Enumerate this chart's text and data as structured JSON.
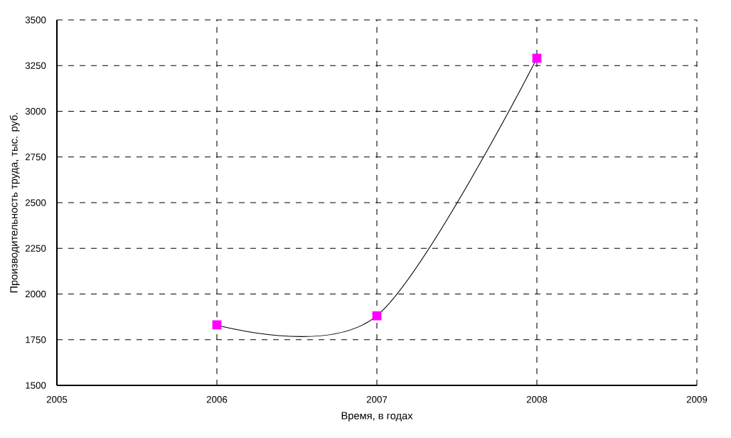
{
  "chart_data": {
    "type": "line",
    "xlabel": "Время, в годах",
    "ylabel": "Производительность труда, тыс. руб.",
    "x": [
      2006,
      2007,
      2008
    ],
    "series": [
      {
        "color": "#000000",
        "colors": [
          "#ff00ff",
          "#ff00ff",
          "#ff00ff"
        ],
        "values": [
          1831,
          1881,
          3290
        ]
      }
    ],
    "xlim": [
      2005,
      2009
    ],
    "xticks": [
      2005,
      2006,
      2007,
      2008,
      2009
    ],
    "ylim": [
      1500,
      3500
    ],
    "yticks": [
      1500,
      1750,
      2000,
      2250,
      2500,
      2750,
      3000,
      3250,
      3500
    ],
    "grid": true,
    "marker": "square",
    "line_style": "solid"
  }
}
